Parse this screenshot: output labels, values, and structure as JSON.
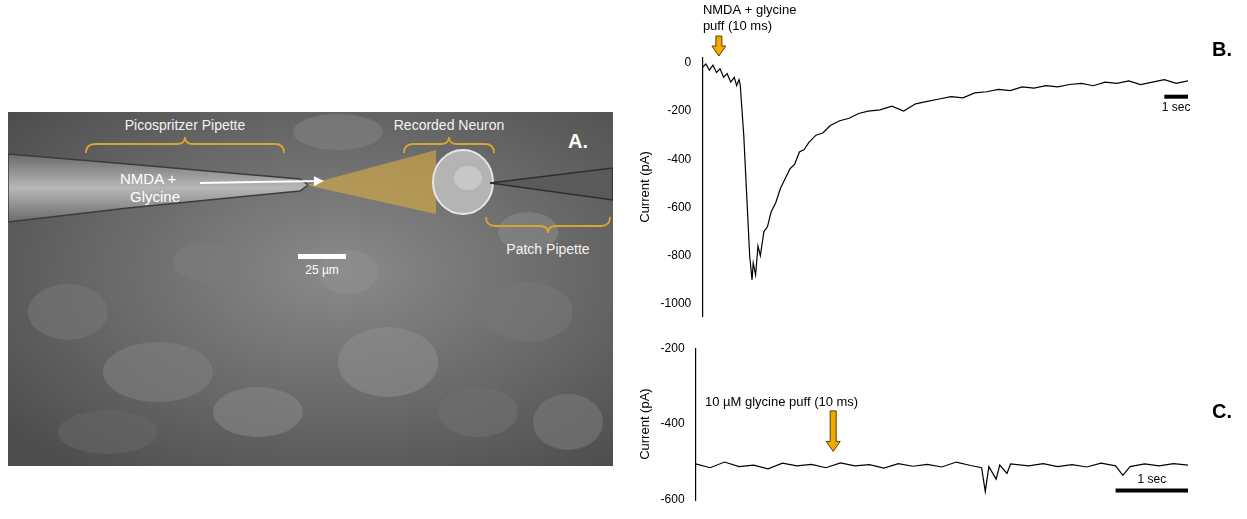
{
  "panel_a": {
    "panel_label": "A.",
    "picospritzer_label": "Picospritzer Pipette",
    "neuron_label": "Recorded Neuron",
    "patch_label": "Patch Pipette",
    "drug_label": [
      "NMDA +",
      "Glycine"
    ],
    "scale_bar": "25 µm"
  },
  "chart_data": [
    {
      "type": "line",
      "panel_label": "B.",
      "annotation": {
        "text": [
          "NMDA + glycine",
          "puff (10 ms)"
        ],
        "x": 0.7
      },
      "y_label": "Current (pA)",
      "x": [
        0,
        0.15,
        0.3,
        0.45,
        0.6,
        0.75,
        0.9,
        1.05,
        1.2,
        1.35,
        1.45,
        1.55,
        1.6,
        1.75,
        1.9,
        2.0,
        2.1,
        2.15,
        2.25,
        2.35,
        2.45,
        2.6,
        2.75,
        2.9,
        3.1,
        3.3,
        3.5,
        3.7,
        3.9,
        4.1,
        4.3,
        4.5,
        4.8,
        5.1,
        5.4,
        5.8,
        6.2,
        6.6,
        7.0,
        7.5,
        8.0,
        8.5,
        9.0,
        9.5,
        10,
        10.5,
        11,
        11.5,
        12,
        12.5,
        13,
        13.5,
        14,
        14.5,
        15,
        15.5,
        16,
        16.5,
        17,
        17.5,
        18,
        18.5,
        19,
        19.5,
        20,
        20.5
      ],
      "values": [
        -20,
        -5,
        -30,
        -10,
        -40,
        -25,
        -60,
        -45,
        -80,
        -60,
        -95,
        -70,
        -90,
        -300,
        -600,
        -800,
        -900,
        -830,
        -880,
        -760,
        -800,
        -700,
        -680,
        -620,
        -580,
        -520,
        -480,
        -440,
        -420,
        -370,
        -360,
        -330,
        -300,
        -290,
        -260,
        -240,
        -230,
        -210,
        -200,
        -195,
        -180,
        -200,
        -170,
        -160,
        -150,
        -140,
        -145,
        -125,
        -120,
        -110,
        -115,
        -100,
        -105,
        -95,
        -100,
        -90,
        -85,
        -95,
        -80,
        -85,
        -75,
        -90,
        -80,
        -70,
        -85,
        -75
      ],
      "color": "#000000",
      "xlim": [
        0,
        20.5
      ],
      "xticks": [],
      "ylim": [
        -1050,
        20
      ],
      "yticks": [
        -1000,
        -800,
        -600,
        -400,
        -200,
        0
      ],
      "grid": false,
      "tick_labels": "y",
      "scale_bar": {
        "length": 1,
        "label": "1 sec"
      }
    },
    {
      "type": "line",
      "panel_label": "C.",
      "annotation": {
        "text": [
          "10 µM glycine puff (10 ms)"
        ],
        "x": 1.9
      },
      "y_label": "Current (pA)",
      "x": [
        0,
        0.2,
        0.4,
        0.6,
        0.8,
        1.0,
        1.2,
        1.4,
        1.6,
        1.8,
        2.0,
        2.2,
        2.4,
        2.6,
        2.8,
        3.0,
        3.2,
        3.4,
        3.6,
        3.8,
        3.95,
        4.0,
        4.05,
        4.15,
        4.2,
        4.3,
        4.35,
        4.6,
        4.8,
        5.0,
        5.2,
        5.4,
        5.6,
        5.8,
        5.9,
        6.0,
        6.2,
        6.4,
        6.6,
        6.8
      ],
      "values": [
        -505,
        -515,
        -500,
        -512,
        -508,
        -518,
        -503,
        -510,
        -506,
        -515,
        -502,
        -510,
        -507,
        -516,
        -504,
        -511,
        -506,
        -513,
        -500,
        -509,
        -515,
        -578,
        -512,
        -545,
        -508,
        -530,
        -505,
        -510,
        -504,
        -512,
        -507,
        -513,
        -503,
        -510,
        -535,
        -512,
        -505,
        -510,
        -504,
        -508
      ],
      "color": "#000000",
      "xlim": [
        0,
        6.8
      ],
      "xticks": [],
      "ylim": [
        -600,
        -200
      ],
      "yticks": [
        -600,
        -400,
        -200
      ],
      "grid": false,
      "tick_labels": "y",
      "scale_bar": {
        "length": 1,
        "label": "1 sec"
      }
    }
  ]
}
